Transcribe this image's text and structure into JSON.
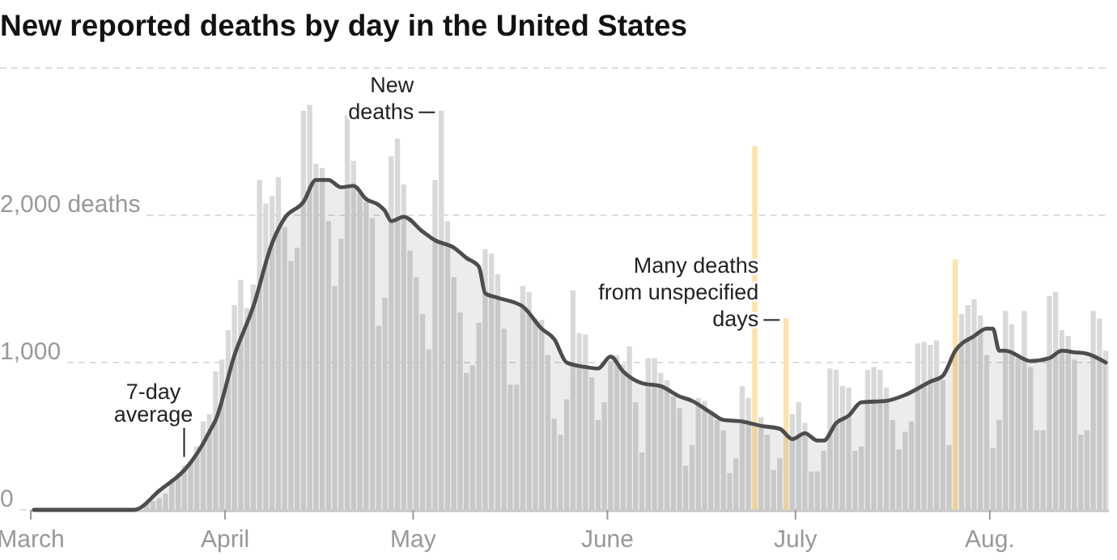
{
  "chart_data": {
    "type": "bar",
    "title": "New reported deaths by day in the United States",
    "x": [
      "--03-01",
      "--03-02",
      "--03-03",
      "--03-04",
      "--03-05",
      "--03-06",
      "--03-07",
      "--03-08",
      "--03-09",
      "--03-10",
      "--03-11",
      "--03-12",
      "--03-13",
      "--03-14",
      "--03-15",
      "--03-16",
      "--03-17",
      "--03-18",
      "--03-19",
      "--03-20",
      "--03-21",
      "--03-22",
      "--03-23",
      "--03-24",
      "--03-25",
      "--03-26",
      "--03-27",
      "--03-28",
      "--03-29",
      "--03-30",
      "--03-31",
      "--04-01",
      "--04-02",
      "--04-03",
      "--04-04",
      "--04-05",
      "--04-06",
      "--04-07",
      "--04-08",
      "--04-09",
      "--04-10",
      "--04-11",
      "--04-12",
      "--04-13",
      "--04-14",
      "--04-15",
      "--04-16",
      "--04-17",
      "--04-18",
      "--04-19",
      "--04-20",
      "--04-21",
      "--04-22",
      "--04-23",
      "--04-24",
      "--04-25",
      "--04-26",
      "--04-27",
      "--04-28",
      "--04-29",
      "--04-30",
      "--05-01",
      "--05-02",
      "--05-03",
      "--05-04",
      "--05-05",
      "--05-06",
      "--05-07",
      "--05-08",
      "--05-09",
      "--05-10",
      "--05-11",
      "--05-12",
      "--05-13",
      "--05-14",
      "--05-15",
      "--05-16",
      "--05-17",
      "--05-18",
      "--05-19",
      "--05-20",
      "--05-21",
      "--05-22",
      "--05-23",
      "--05-24",
      "--05-25",
      "--05-26",
      "--05-27",
      "--05-28",
      "--05-29",
      "--05-30",
      "--05-31",
      "--06-01",
      "--06-02",
      "--06-03",
      "--06-04",
      "--06-05",
      "--06-06",
      "--06-07",
      "--06-08",
      "--06-09",
      "--06-10",
      "--06-11",
      "--06-12",
      "--06-13",
      "--06-14",
      "--06-15",
      "--06-16",
      "--06-17",
      "--06-18",
      "--06-19",
      "--06-20",
      "--06-21",
      "--06-22",
      "--06-23",
      "--06-24",
      "--06-25",
      "--06-26",
      "--06-27",
      "--06-28",
      "--06-29",
      "--06-30",
      "--07-01",
      "--07-02",
      "--07-03",
      "--07-04",
      "--07-05",
      "--07-06",
      "--07-07",
      "--07-08",
      "--07-09",
      "--07-10",
      "--07-11",
      "--07-12",
      "--07-13",
      "--07-14",
      "--07-15",
      "--07-16",
      "--07-17",
      "--07-18",
      "--07-19",
      "--07-20",
      "--07-21",
      "--07-22",
      "--07-23",
      "--07-24",
      "--07-25",
      "--07-26",
      "--07-27",
      "--07-28",
      "--07-29",
      "--07-30",
      "--07-31",
      "--08-01",
      "--08-02",
      "--08-03",
      "--08-04",
      "--08-05",
      "--08-06",
      "--08-07",
      "--08-08",
      "--08-09",
      "--08-10",
      "--08-11",
      "--08-12",
      "--08-13",
      "--08-14",
      "--08-15",
      "--08-16",
      "--08-17",
      "--08-18",
      "--08-19"
    ],
    "series": [
      {
        "values": [
          0,
          0,
          0,
          0,
          0,
          0,
          0,
          0,
          10,
          0,
          10,
          0,
          0,
          0,
          0,
          0,
          null,
          null,
          50,
          60,
          80,
          110,
          210,
          250,
          300,
          330,
          430,
          600,
          650,
          940,
          1020,
          1220,
          1390,
          1560,
          1370,
          1530,
          2240,
          2080,
          2130,
          2260,
          1920,
          1690,
          1780,
          2710,
          2750,
          2350,
          2320,
          1960,
          1520,
          1840,
          2680,
          2370,
          2150,
          2090,
          1980,
          1250,
          1440,
          2400,
          2520,
          2210,
          1760,
          1580,
          1330,
          1090,
          2240,
          2710,
          1960,
          1580,
          1340,
          930,
          980,
          1270,
          1770,
          1740,
          1600,
          1230,
          850,
          850,
          1520,
          1480,
          1300,
          1290,
          1050,
          620,
          510,
          750,
          1490,
          1200,
          1190,
          900,
          610,
          730,
          1010,
          1050,
          990,
          1110,
          730,
          390,
          1030,
          1030,
          930,
          880,
          770,
          690,
          300,
          440,
          760,
          740,
          670,
          610,
          540,
          250,
          350,
          840,
          760,
          2470,
          630,
          510,
          270,
          350,
          1300,
          650,
          730,
          590,
          260,
          260,
          400,
          960,
          950,
          840,
          830,
          400,
          430,
          950,
          970,
          950,
          830,
          610,
          410,
          530,
          600,
          1130,
          1140,
          1120,
          1150,
          880,
          440,
          1700,
          1330,
          1390,
          1430,
          1320,
          1050,
          420,
          610,
          1350,
          1260,
          1030,
          1350,
          970,
          540,
          540,
          1450,
          1480,
          1220,
          1180,
          1020,
          510,
          540,
          1350,
          1300,
          1080
        ],
        "colors": [
          "#d9d9d9",
          "#d9d9d9",
          "#d9d9d9",
          "#d9d9d9",
          "#d9d9d9",
          "#d9d9d9",
          "#d9d9d9",
          "#d9d9d9",
          "#d9d9d9",
          "#d9d9d9",
          "#d9d9d9",
          "#d9d9d9",
          "#d9d9d9",
          "#d9d9d9",
          "#d9d9d9",
          "#d9d9d9",
          "#d9d9d9",
          "#d9d9d9",
          "#d9d9d9",
          "#d9d9d9",
          "#d9d9d9",
          "#d9d9d9",
          "#d9d9d9",
          "#d9d9d9",
          "#d9d9d9",
          "#d9d9d9",
          "#d9d9d9",
          "#d9d9d9",
          "#d9d9d9",
          "#d9d9d9",
          "#d9d9d9",
          "#d9d9d9",
          "#d9d9d9",
          "#d9d9d9",
          "#d9d9d9",
          "#d9d9d9",
          "#d9d9d9",
          "#d9d9d9",
          "#d9d9d9",
          "#d9d9d9",
          "#d9d9d9",
          "#d9d9d9",
          "#d9d9d9",
          "#d9d9d9",
          "#d9d9d9",
          "#d9d9d9",
          "#d9d9d9",
          "#d9d9d9",
          "#d9d9d9",
          "#d9d9d9",
          "#d9d9d9",
          "#d9d9d9",
          "#d9d9d9",
          "#d9d9d9",
          "#d9d9d9",
          "#d9d9d9",
          "#d9d9d9",
          "#d9d9d9",
          "#d9d9d9",
          "#d9d9d9",
          "#d9d9d9",
          "#d9d9d9",
          "#d9d9d9",
          "#d9d9d9",
          "#d9d9d9",
          "#d9d9d9",
          "#d9d9d9",
          "#d9d9d9",
          "#d9d9d9",
          "#d9d9d9",
          "#d9d9d9",
          "#d9d9d9",
          "#d9d9d9",
          "#d9d9d9",
          "#d9d9d9",
          "#d9d9d9",
          "#d9d9d9",
          "#d9d9d9",
          "#d9d9d9",
          "#d9d9d9",
          "#d9d9d9",
          "#d9d9d9",
          "#d9d9d9",
          "#d9d9d9",
          "#d9d9d9",
          "#d9d9d9",
          "#d9d9d9",
          "#d9d9d9",
          "#d9d9d9",
          "#d9d9d9",
          "#d9d9d9",
          "#d9d9d9",
          "#d9d9d9",
          "#d9d9d9",
          "#d9d9d9",
          "#d9d9d9",
          "#d9d9d9",
          "#d9d9d9",
          "#d9d9d9",
          "#d9d9d9",
          "#d9d9d9",
          "#d9d9d9",
          "#d9d9d9",
          "#d9d9d9",
          "#d9d9d9",
          "#d9d9d9",
          "#d9d9d9",
          "#d9d9d9",
          "#d9d9d9",
          "#d9d9d9",
          "#d9d9d9",
          "#d9d9d9",
          "#d9d9d9",
          "#d9d9d9",
          "#d9d9d9",
          "#fde3a7",
          "#d9d9d9",
          "#d9d9d9",
          "#d9d9d9",
          "#d9d9d9",
          "#fde3a7",
          "#d9d9d9",
          "#d9d9d9",
          "#d9d9d9",
          "#d9d9d9",
          "#d9d9d9",
          "#d9d9d9",
          "#d9d9d9",
          "#d9d9d9",
          "#d9d9d9",
          "#d9d9d9",
          "#d9d9d9",
          "#d9d9d9",
          "#d9d9d9",
          "#d9d9d9",
          "#d9d9d9",
          "#d9d9d9",
          "#d9d9d9",
          "#d9d9d9",
          "#d9d9d9",
          "#d9d9d9",
          "#d9d9d9",
          "#d9d9d9",
          "#d9d9d9",
          "#d9d9d9",
          "#d9d9d9",
          "#d9d9d9",
          "#fde3a7",
          "#d9d9d9",
          "#d9d9d9",
          "#d9d9d9",
          "#d9d9d9",
          "#d9d9d9",
          "#d9d9d9",
          "#d9d9d9",
          "#d9d9d9",
          "#d9d9d9",
          "#d9d9d9",
          "#d9d9d9",
          "#d9d9d9",
          "#d9d9d9",
          "#d9d9d9",
          "#d9d9d9",
          "#d9d9d9",
          "#d9d9d9",
          "#d9d9d9",
          "#d9d9d9",
          "#d9d9d9",
          "#d9d9d9",
          "#d9d9d9",
          "#d9d9d9",
          "#d9d9d9"
        ]
      },
      {
        "type": "area",
        "color": "#4d4d4d",
        "x": [
          "--03-01",
          "--03-17",
          "--03-21",
          "--03-26",
          "--03-28",
          "--03-29",
          "--03-30",
          "--04-02",
          "--04-05",
          "--04-08",
          "--04-10",
          "--04-13",
          "--04-15",
          "--04-17",
          "--04-19",
          "--04-21",
          "--04-23",
          "--04-25",
          "--04-26",
          "--04-27",
          "--04-29",
          "--05-02",
          "--05-04",
          "--05-07",
          "--05-09",
          "--05-11",
          "--05-12",
          "--05-14",
          "--05-18",
          "--05-21",
          "--05-23",
          "--05-25",
          "--05-28",
          "--05-30",
          "--06-01",
          "--06-03",
          "--06-06",
          "--06-09",
          "--06-12",
          "--06-14",
          "--06-17",
          "--06-19",
          "--06-22",
          "--06-25",
          "--06-28",
          "--06-30",
          "--07-02",
          "--07-04",
          "--07-05",
          "--07-07",
          "--07-09",
          "--07-11",
          "--07-15",
          "--07-18",
          "--07-22",
          "--07-24",
          "--07-26",
          "--07-29",
          "--07-31",
          "--08-01",
          "--08-02",
          "--08-03",
          "--08-07",
          "--08-10",
          "--08-12",
          "--08-14",
          "--08-16",
          "--08-19"
        ],
        "values": [
          0,
          0,
          130,
          320,
          450,
          530,
          610,
          1050,
          1380,
          1810,
          1980,
          2090,
          2240,
          2240,
          2190,
          2200,
          2110,
          2070,
          2030,
          1960,
          1990,
          1890,
          1830,
          1780,
          1710,
          1650,
          1470,
          1440,
          1380,
          1230,
          1160,
          1000,
          970,
          960,
          1040,
          940,
          860,
          840,
          770,
          740,
          660,
          610,
          600,
          570,
          550,
          480,
          520,
          470,
          470,
          590,
          640,
          730,
          740,
          780,
          870,
          910,
          1080,
          1180,
          1230,
          1230,
          1080,
          1080,
          1010,
          1030,
          1080,
          1070,
          1060,
          1000
        ]
      }
    ],
    "xlim": [
      "--03-01",
      "--08-20"
    ],
    "xticks": [
      {
        "value": "--03-01",
        "label": "March"
      },
      {
        "value": "--04-01",
        "label": "April"
      },
      {
        "value": "--05-01",
        "label": "May"
      },
      {
        "value": "--06-01",
        "label": "June"
      },
      {
        "value": "--07-01",
        "label": "July"
      },
      {
        "value": "--08-01",
        "label": "Aug."
      }
    ],
    "ylim": [
      0,
      3000
    ],
    "yticks": [
      {
        "value": 0,
        "label": "0"
      },
      {
        "value": 1000,
        "label": "1,000"
      },
      {
        "value": 2000,
        "label": "2,000 deaths"
      },
      {
        "value": 3000,
        "label": null
      }
    ],
    "grid": "y",
    "annotations": [
      {
        "text": "New deaths",
        "x": "--05-05",
        "y": 2710
      },
      {
        "text": "7-day average",
        "x": "--03-26",
        "y": 315
      },
      {
        "text": "Many deaths from unspecified days",
        "x": "--06-29",
        "y": 1300
      }
    ]
  }
}
